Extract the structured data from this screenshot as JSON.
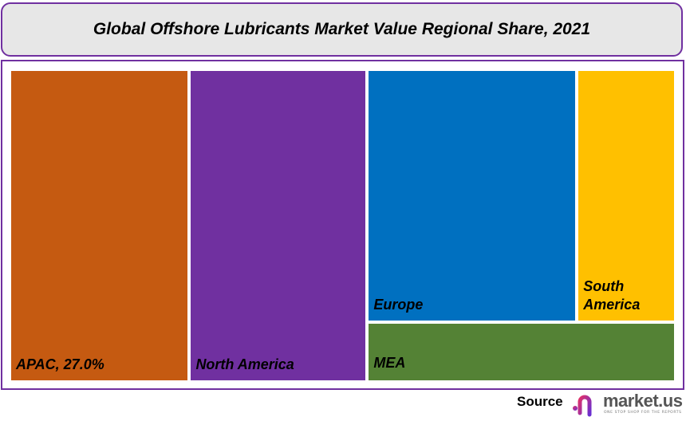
{
  "chart_data": {
    "type": "treemap",
    "title": "Global Offshore Lubricants Market Value Regional Share, 2021",
    "unit": "%",
    "items": [
      {
        "name": "APAC",
        "label": "APAC, 27.0%",
        "value": 27.0,
        "color": "#c55a11"
      },
      {
        "name": "North America",
        "label": "North America",
        "value": 26.7,
        "color": "#7030a0"
      },
      {
        "name": "Europe",
        "label": "Europe",
        "value": 25.5,
        "color": "#0070c0"
      },
      {
        "name": "South America",
        "label": "South America",
        "value": 12.0,
        "color": "#ffc000"
      },
      {
        "name": "MEA",
        "label": "MEA",
        "value": 8.8,
        "color": "#548235"
      }
    ]
  },
  "footer": {
    "source_label": "Source",
    "logo_text": "market.us",
    "logo_tagline": "ONE STOP SHOP FOR THE REPORTS"
  }
}
